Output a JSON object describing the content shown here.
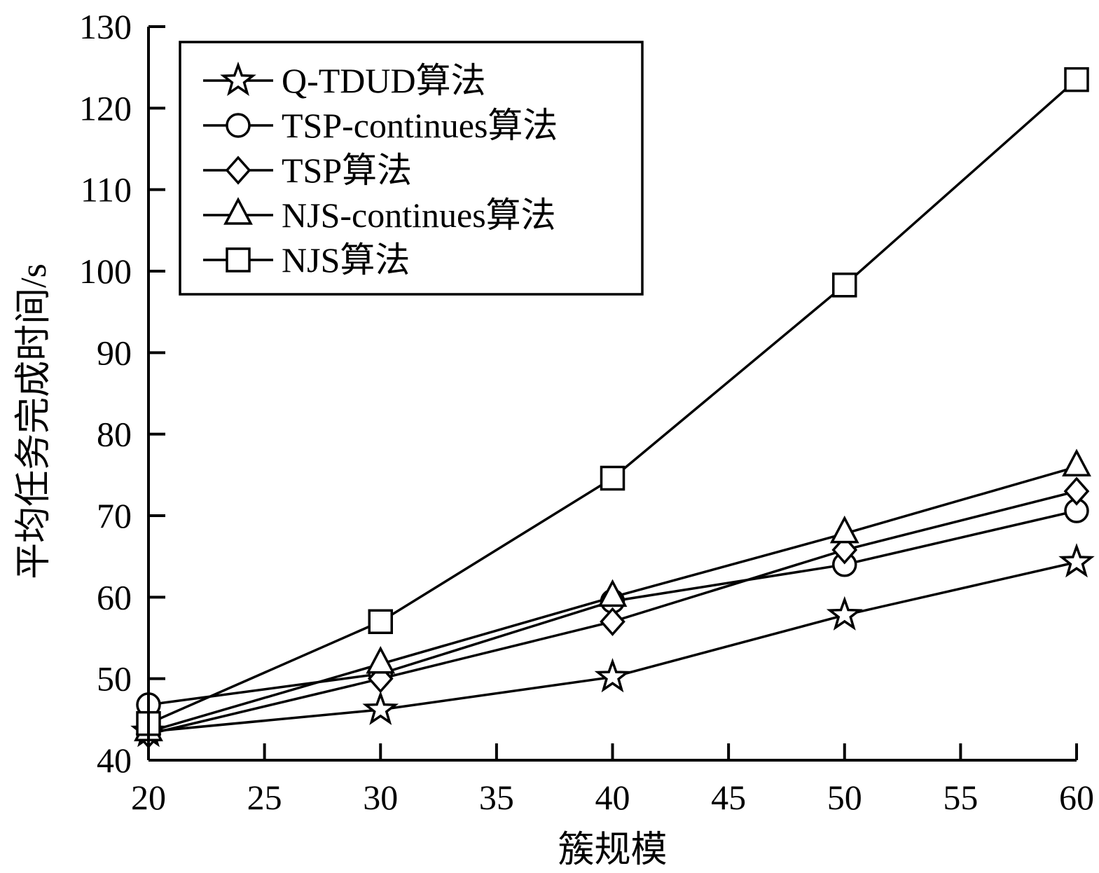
{
  "chart_data": {
    "type": "line",
    "title": "",
    "xlabel": "簇规模",
    "ylabel": "平均任务完成时间/s",
    "xlim": [
      20,
      60
    ],
    "ylim": [
      40,
      130
    ],
    "x_ticks": [
      "20",
      "25",
      "30",
      "35",
      "40",
      "45",
      "50",
      "55",
      "60"
    ],
    "y_ticks": [
      "40",
      "50",
      "60",
      "70",
      "80",
      "90",
      "100",
      "110",
      "120",
      "130"
    ],
    "x": [
      20,
      30,
      40,
      50,
      60
    ],
    "legend_position": "top-left",
    "grid": false,
    "series": [
      {
        "name": "Q-TDUD算法",
        "marker": "star",
        "values": [
          43.5,
          46.2,
          50.2,
          57.8,
          64.3
        ]
      },
      {
        "name": "TSP-continues算法",
        "marker": "circle",
        "values": [
          46.8,
          50.6,
          59.5,
          64.0,
          70.6
        ]
      },
      {
        "name": "TSP算法",
        "marker": "diamond",
        "values": [
          43.2,
          50.0,
          57.0,
          65.8,
          73.0
        ]
      },
      {
        "name": "NJS-continues算法",
        "marker": "triangle",
        "values": [
          43.5,
          51.8,
          60.0,
          67.8,
          76.0
        ]
      },
      {
        "name": "NJS算法",
        "marker": "square",
        "values": [
          44.5,
          57.0,
          74.6,
          98.3,
          123.5
        ]
      }
    ]
  }
}
